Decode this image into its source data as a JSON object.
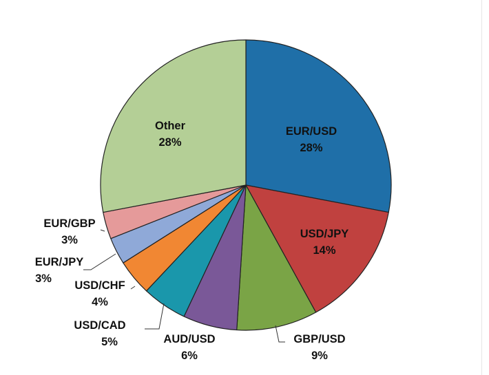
{
  "chart_data": {
    "type": "pie",
    "title": "",
    "start": "12 o'clock",
    "direction": "clockwise",
    "slices": [
      {
        "label": "EUR/USD",
        "value": 28,
        "display": "28%",
        "color": "#1f6fa8"
      },
      {
        "label": "USD/JPY",
        "value": 14,
        "display": "14%",
        "color": "#c0413f"
      },
      {
        "label": "GBP/USD",
        "value": 9,
        "display": "9%",
        "color": "#7aa446"
      },
      {
        "label": "AUD/USD",
        "value": 6,
        "display": "6%",
        "color": "#7a5898"
      },
      {
        "label": "USD/CAD",
        "value": 5,
        "display": "5%",
        "color": "#1a97ab"
      },
      {
        "label": "USD/CHF",
        "value": 4,
        "display": "4%",
        "color": "#f18733"
      },
      {
        "label": "EUR/JPY",
        "value": 3,
        "display": "3%",
        "color": "#8fa9d8"
      },
      {
        "label": "EUR/GBP",
        "value": 3,
        "display": "3%",
        "color": "#e59a9a"
      },
      {
        "label": "Other",
        "value": 28,
        "display": "28%",
        "color": "#b4cf96"
      }
    ]
  }
}
